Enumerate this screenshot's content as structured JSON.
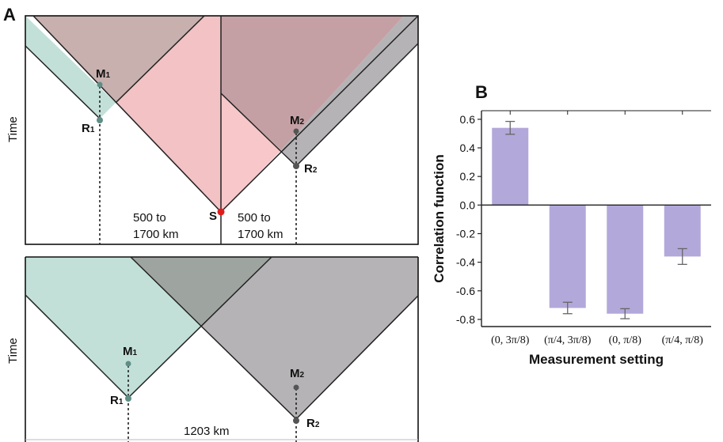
{
  "panel_a": {
    "label": "A",
    "time_label_top": "Time",
    "time_label_bottom": "Time",
    "top": {
      "m1_main": "M",
      "m1_sub": "1",
      "r1_main": "R",
      "r1_sub": "1",
      "m2_main": "M",
      "m2_sub": "2",
      "r2_main": "R",
      "r2_sub": "2",
      "source": "S",
      "left_dist_line1": "500 to",
      "left_dist_line2": "1700 km",
      "right_dist_line1": "500 to",
      "right_dist_line2": "1700 km"
    },
    "bottom": {
      "m1_main": "M",
      "m1_sub": "1",
      "r1_main": "R",
      "r1_sub": "1",
      "m2_main": "M",
      "m2_sub": "2",
      "r2_main": "R",
      "r2_sub": "2",
      "dist": "1203 km"
    },
    "colors": {
      "teal": "#c2e0d8",
      "mauve": "#c7b0ae",
      "pink": "#f2c2c5",
      "rose": "#c4a0a4",
      "gray": "#b5b3b6",
      "darkgray": "#9ea4a0",
      "source": "#e11b1b",
      "m1_dot": "#5e8e86",
      "m2_dot": "#555555"
    }
  },
  "panel_b": {
    "label": "B",
    "bar_color": "#b3a8da",
    "chart_data": {
      "type": "bar",
      "categories": [
        "(0, 3π/8)",
        "(π/4, 3π/8)",
        "(0, π/8)",
        "(π/4, π/8)"
      ],
      "values": [
        0.54,
        -0.72,
        -0.76,
        -0.36
      ],
      "errors": [
        0.045,
        0.04,
        0.035,
        0.055
      ],
      "ylabel": "Correlation function",
      "xlabel": "Measurement setting",
      "ylim": [
        -0.85,
        0.66
      ],
      "yticks": [
        0.6,
        0.4,
        0.2,
        0.0,
        -0.2,
        -0.4,
        -0.6,
        -0.8
      ],
      "ytick_labels": [
        "0.6",
        "0.4",
        "0.2",
        "0.0",
        "-0.2",
        "-0.4",
        "-0.6",
        "-0.8"
      ]
    }
  }
}
